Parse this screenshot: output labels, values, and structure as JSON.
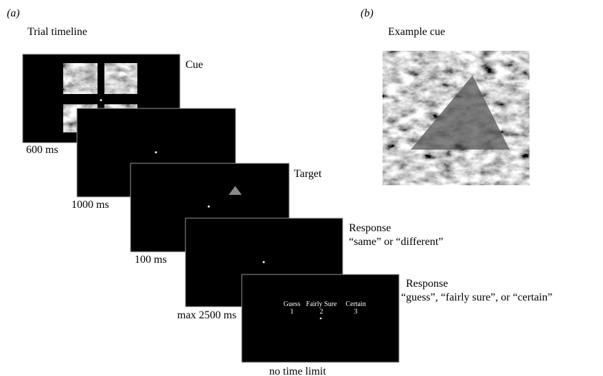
{
  "panels": [
    {
      "label": "(a)",
      "title": "Trial timeline"
    },
    {
      "label": "(b)",
      "title": "Example cue"
    }
  ],
  "screens": [
    {
      "caption": [
        "Cue"
      ],
      "duration": "600 ms"
    },
    {
      "duration": "1000 ms"
    },
    {
      "caption": [
        "Target"
      ],
      "duration": "100 ms"
    },
    {
      "caption": [
        "Response",
        "“same” or “different”"
      ],
      "duration": "max 2500 ms"
    },
    {
      "caption": [
        "Response",
        "“guess”, “fairly sure”, or “certain”"
      ],
      "duration": "no time limit",
      "options": [
        {
          "label": "Guess",
          "key": "1"
        },
        {
          "label": "Fairly Sure",
          "key": "2"
        },
        {
          "label": "Certain",
          "key": "3"
        }
      ]
    }
  ]
}
